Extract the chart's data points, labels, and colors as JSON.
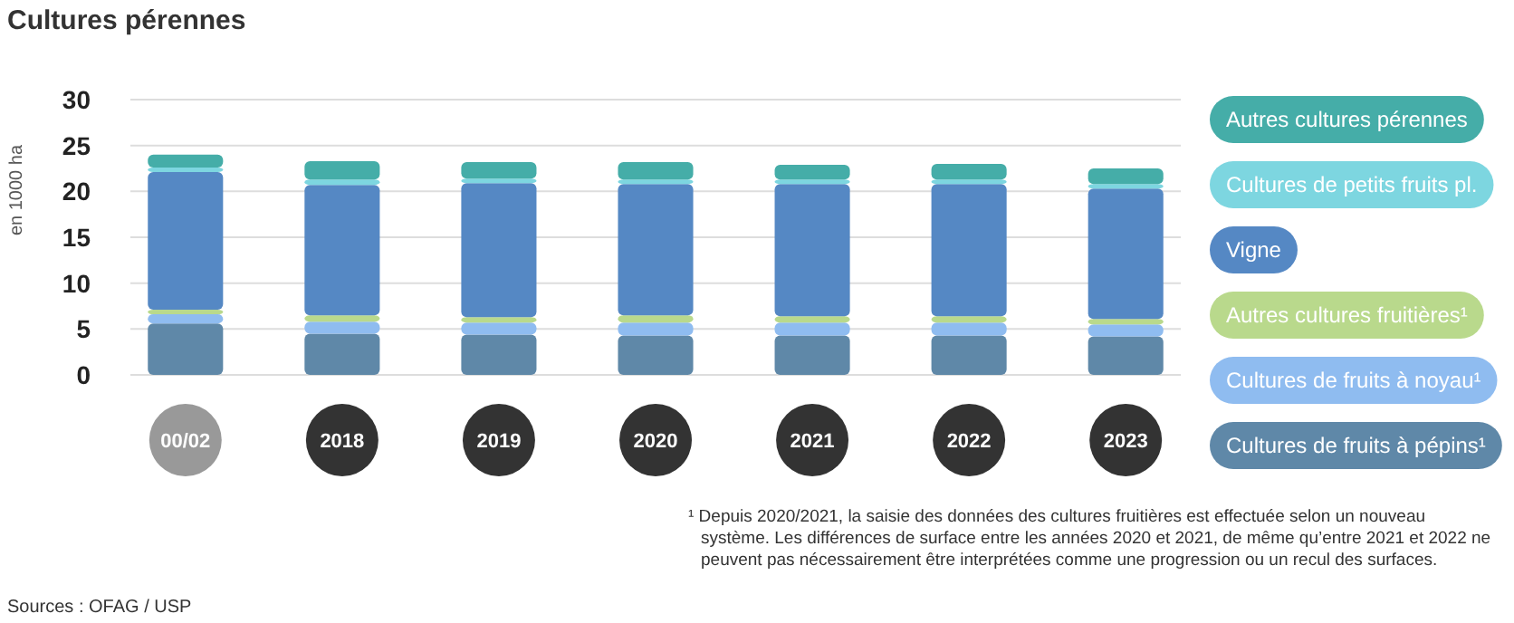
{
  "chart_data": {
    "type": "bar",
    "title": "Cultures pérennes",
    "ylabel": "en 1000 ha",
    "stacked": true,
    "grid": "y",
    "legend": "right",
    "categories": [
      "00/02",
      "2018",
      "2019",
      "2020",
      "2021",
      "2022",
      "2023"
    ],
    "ylim": [
      0,
      30
    ],
    "yticks": [
      0,
      5,
      10,
      15,
      20,
      25,
      30
    ],
    "series": [
      {
        "name": "Cultures de fruits à pépins¹",
        "color": "#5f88a8",
        "values": [
          5.6,
          4.5,
          4.4,
          4.3,
          4.3,
          4.3,
          4.2
        ]
      },
      {
        "name": "Cultures de fruits à noyau¹",
        "color": "#8fbcf0",
        "values": [
          1.0,
          1.3,
          1.3,
          1.4,
          1.4,
          1.4,
          1.3
        ]
      },
      {
        "name": "Autres cultures fruitières¹",
        "color": "#b9d98c",
        "values": [
          0.5,
          0.7,
          0.6,
          0.8,
          0.7,
          0.7,
          0.6
        ]
      },
      {
        "name": "Vigne",
        "color": "#5588c4",
        "values": [
          15.0,
          14.2,
          14.6,
          14.3,
          14.4,
          14.4,
          14.2
        ]
      },
      {
        "name": "Cultures de petits fruits pl.",
        "color": "#7dd6e0",
        "values": [
          0.5,
          0.6,
          0.5,
          0.5,
          0.5,
          0.5,
          0.5
        ]
      },
      {
        "name": "Autres cultures pérennes",
        "color": "#45ada8",
        "values": [
          1.4,
          2.0,
          1.8,
          1.9,
          1.6,
          1.7,
          1.7
        ]
      }
    ],
    "annotations": [
      "¹ Depuis 2020/2021, la saisie des données des cultures fruitières est effectuée selon un nouveau système. Les différences de surface entre les années 2020 et 2021, de même qu’entre 2021 et 2022 ne peuvent pas nécessairement être interprétées comme une progression ou un recul des surfaces.",
      "Sources : OFAG / USP"
    ]
  }
}
